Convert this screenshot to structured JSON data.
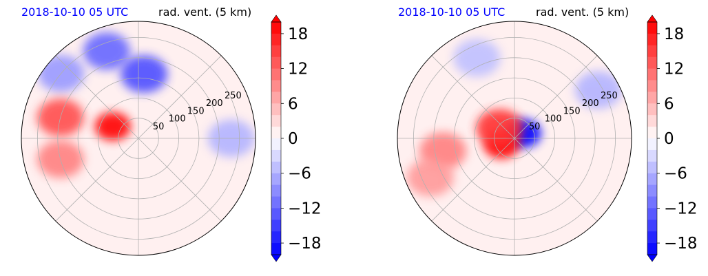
{
  "figure": {
    "colors": {
      "positive": "#ff0000",
      "negative": "#0000ff",
      "neutral": "#ffffff",
      "grid": "#b0b0b0"
    }
  },
  "chart_data": [
    {
      "type": "heatmap",
      "projection": "polar",
      "title_left": "2018-10-10 05 UTC",
      "title_right": "rad. vent. (5 km)",
      "radial_ticks": [
        50,
        100,
        150,
        200,
        250
      ],
      "radial_tick_labels": [
        "50",
        "100",
        "150",
        "200",
        "250"
      ],
      "rlim": [
        0,
        290
      ],
      "angular_gridlines_deg": [
        0,
        45,
        90,
        135,
        180,
        225,
        270,
        315
      ],
      "grid": true,
      "colorbar": {
        "ticks": [
          18,
          12,
          6,
          0,
          -6,
          -12,
          -18
        ],
        "tick_labels": [
          "18",
          "12",
          "6",
          "0",
          "−6",
          "−12",
          "−18"
        ],
        "range": [
          -20,
          20
        ],
        "extend": "both",
        "levels": 20
      },
      "features": [
        {
          "sign": "negative",
          "r": 230,
          "theta_deg": 110,
          "strength": 12
        },
        {
          "sign": "negative",
          "r": 160,
          "theta_deg": 85,
          "strength": 14
        },
        {
          "sign": "negative",
          "r": 250,
          "theta_deg": 140,
          "strength": 8
        },
        {
          "sign": "positive",
          "r": 200,
          "theta_deg": 165,
          "strength": 14
        },
        {
          "sign": "positive",
          "r": 200,
          "theta_deg": 195,
          "strength": 10
        },
        {
          "sign": "positive",
          "r": 70,
          "theta_deg": 155,
          "strength": 20
        },
        {
          "sign": "negative",
          "r": 230,
          "theta_deg": 0,
          "strength": 6
        }
      ]
    },
    {
      "type": "heatmap",
      "projection": "polar",
      "title_left": "2018-10-10 05 UTC",
      "title_right": "rad. vent. (5 km)",
      "radial_ticks": [
        50,
        100,
        150,
        200,
        250
      ],
      "radial_tick_labels": [
        "50",
        "100",
        "150",
        "200",
        "250"
      ],
      "rlim": [
        0,
        290
      ],
      "angular_gridlines_deg": [
        0,
        45,
        90,
        135,
        180,
        225,
        270,
        315
      ],
      "grid": true,
      "colorbar": {
        "ticks": [
          18,
          12,
          6,
          0,
          -6,
          -12,
          -18
        ],
        "tick_labels": [
          "18",
          "12",
          "6",
          "0",
          "−6",
          "−12",
          "−18"
        ],
        "range": [
          -20,
          20
        ],
        "extend": "both",
        "levels": 20
      },
      "features": [
        {
          "sign": "negative",
          "r": 25,
          "theta_deg": 30,
          "strength": 20
        },
        {
          "sign": "positive",
          "r": 35,
          "theta_deg": 205,
          "strength": 20
        },
        {
          "sign": "positive",
          "r": 45,
          "theta_deg": 145,
          "strength": 16
        },
        {
          "sign": "positive",
          "r": 180,
          "theta_deg": 190,
          "strength": 10
        },
        {
          "sign": "positive",
          "r": 230,
          "theta_deg": 205,
          "strength": 8
        },
        {
          "sign": "negative",
          "r": 240,
          "theta_deg": 30,
          "strength": 6
        },
        {
          "sign": "negative",
          "r": 220,
          "theta_deg": 115,
          "strength": 5
        }
      ]
    }
  ]
}
